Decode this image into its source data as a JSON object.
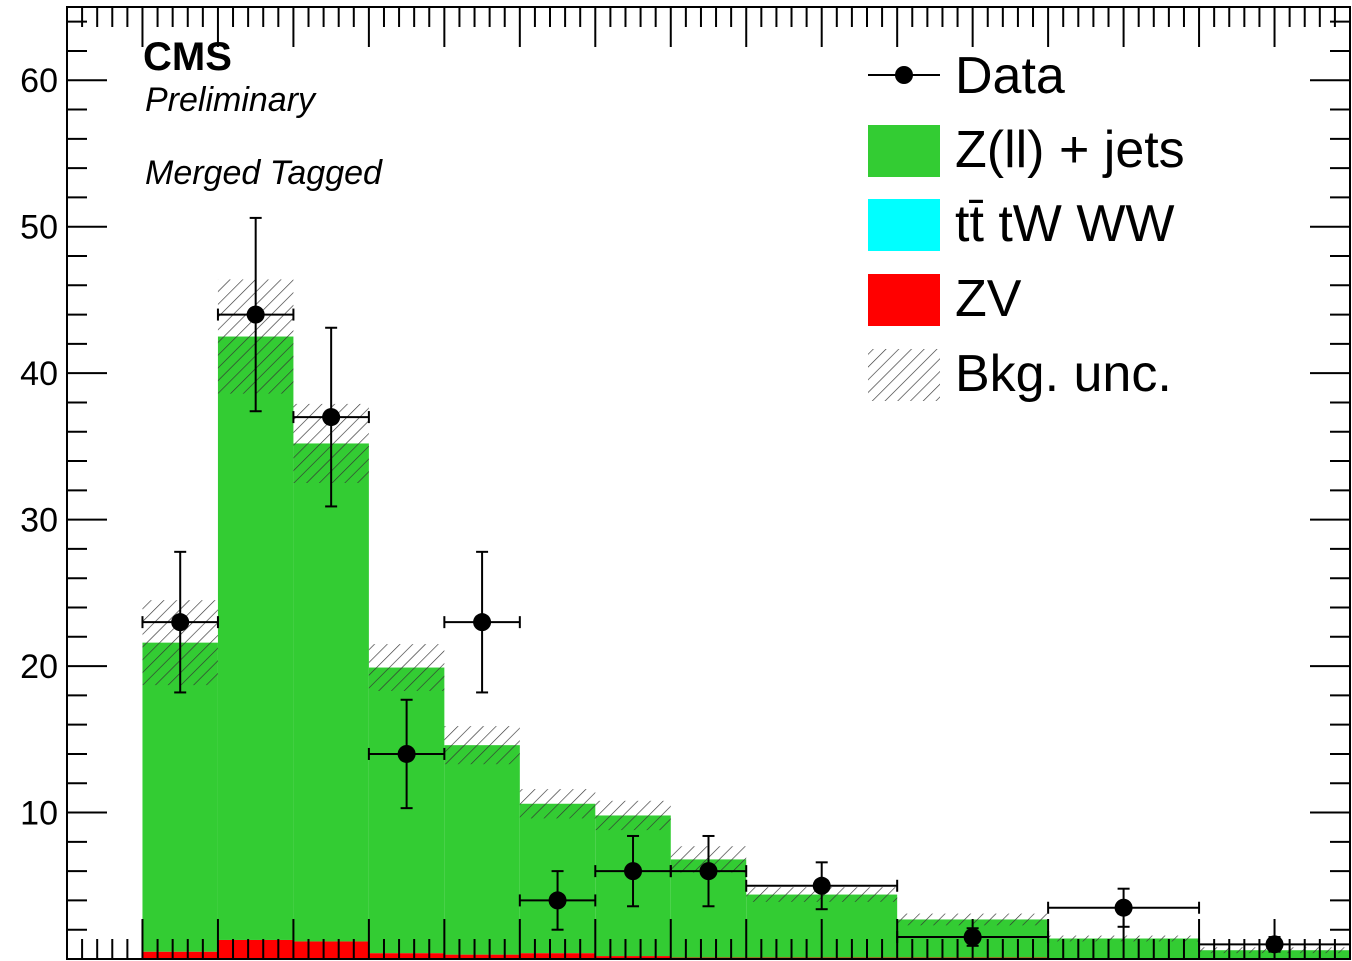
{
  "chart_data": {
    "type": "bar",
    "stacked": true,
    "experiment": "CMS",
    "status": "Preliminary",
    "category": "Merged Tagged",
    "xlabel": "",
    "ylabel": "",
    "ylim": [
      0,
      65
    ],
    "y_ticks": [
      "10",
      "20",
      "30",
      "40",
      "50",
      "60"
    ],
    "grid": false,
    "legend_position": "top-right",
    "colors": {
      "zjets": "#33cc33",
      "ttbar": "#00ffff",
      "zv": "#ff0000",
      "unc": "#333333",
      "data": "#000000"
    },
    "bins": [
      {
        "x_lo": 0.0,
        "x_hi": 1.0
      },
      {
        "x_lo": 1.0,
        "x_hi": 2.0
      },
      {
        "x_lo": 2.0,
        "x_hi": 3.0
      },
      {
        "x_lo": 3.0,
        "x_hi": 4.0
      },
      {
        "x_lo": 4.0,
        "x_hi": 5.0
      },
      {
        "x_lo": 5.0,
        "x_hi": 6.0
      },
      {
        "x_lo": 6.0,
        "x_hi": 7.0
      },
      {
        "x_lo": 7.0,
        "x_hi": 8.0
      },
      {
        "x_lo": 8.0,
        "x_hi": 9.0
      },
      {
        "x_lo": 9.0,
        "x_hi": 11.0
      },
      {
        "x_lo": 11.0,
        "x_hi": 13.0
      },
      {
        "x_lo": 13.0,
        "x_hi": 15.0
      },
      {
        "x_lo": 15.0,
        "x_hi": 17.0
      }
    ],
    "x_range": [
      0.0,
      17.0
    ],
    "series": [
      {
        "name": "ZV",
        "key": "zv",
        "values": [
          0.0,
          0.5,
          1.3,
          1.2,
          0.4,
          0.3,
          0.4,
          0.2,
          0.1,
          0.1,
          0.1,
          0.05,
          0.05
        ]
      },
      {
        "name": "tt̄ tW WW",
        "key": "ttbar",
        "values": [
          0.0,
          0.0,
          0.0,
          0.0,
          0.0,
          0.0,
          0.0,
          0.0,
          0.0,
          0.0,
          0.0,
          0.0,
          0.0
        ]
      },
      {
        "name": "Z(ll) + jets",
        "key": "zjets",
        "values": [
          0.0,
          21.1,
          41.2,
          34.0,
          19.5,
          14.3,
          10.2,
          9.6,
          6.7,
          4.3,
          2.6,
          1.35,
          0.55
        ]
      }
    ],
    "bkg_unc": [
      0.0,
      2.9,
      3.9,
      2.7,
      1.6,
      1.3,
      1.0,
      1.0,
      0.9,
      0.5,
      0.4,
      0.2,
      0.2
    ],
    "data": [
      {
        "x": 1.5,
        "y": 23.0,
        "err_lo": 4.8,
        "err_hi": 4.8
      },
      {
        "x": 2.5,
        "y": 44.0,
        "err_lo": 6.6,
        "err_hi": 6.6
      },
      {
        "x": 3.5,
        "y": 37.0,
        "err_lo": 6.1,
        "err_hi": 6.1
      },
      {
        "x": 4.5,
        "y": 14.0,
        "err_lo": 3.7,
        "err_hi": 3.7
      },
      {
        "x": 5.5,
        "y": 23.0,
        "err_lo": 4.8,
        "err_hi": 4.8
      },
      {
        "x": 6.5,
        "y": 4.0,
        "err_lo": 2.0,
        "err_hi": 2.0
      },
      {
        "x": 7.5,
        "y": 6.0,
        "err_lo": 2.4,
        "err_hi": 2.4
      },
      {
        "x": 8.5,
        "y": 6.0,
        "err_lo": 2.4,
        "err_hi": 2.4
      },
      {
        "x": 10.0,
        "y": 5.0,
        "err_lo": 1.6,
        "err_hi": 1.6
      },
      {
        "x": 12.0,
        "y": 1.5,
        "err_lo": 0.6,
        "err_hi": 0.6
      },
      {
        "x": 14.0,
        "y": 3.5,
        "err_lo": 1.3,
        "err_hi": 1.3
      },
      {
        "x": 16.0,
        "y": 1.0,
        "err_lo": 0.5,
        "err_hi": 0.5
      }
    ],
    "legend": [
      {
        "label": "Data",
        "key": "data"
      },
      {
        "label": "Z(ll) + jets",
        "key": "zjets"
      },
      {
        "label": "tt̄ tW WW",
        "key": "ttbar"
      },
      {
        "label": "ZV",
        "key": "zv"
      },
      {
        "label": "Bkg. unc.",
        "key": "unc"
      }
    ]
  }
}
